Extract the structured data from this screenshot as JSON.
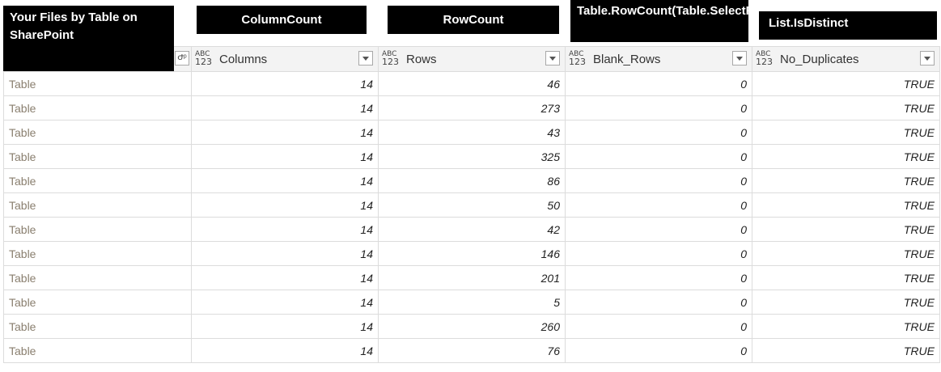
{
  "callouts": {
    "files_by_table": "Your Files by Table on SharePoint",
    "column_count": "ColumnCount",
    "row_count": "RowCount",
    "blank_rows_formula": "Table.RowCount(Table.SelectRows))",
    "is_distinct": "List.IsDistinct"
  },
  "columns": [
    {
      "type_top": "ABC",
      "type_bottom": "123",
      "label": "Columns"
    },
    {
      "type_top": "ABC",
      "type_bottom": "123",
      "label": "Rows"
    },
    {
      "type_top": "ABC",
      "type_bottom": "123",
      "label": "Blank_Rows"
    },
    {
      "type_top": "ABC",
      "type_bottom": "123",
      "label": "No_Duplicates"
    }
  ],
  "first_column_button": "Ժᵖ",
  "rows": [
    {
      "table": "Table",
      "columns": "14",
      "rows": "46",
      "blank": "0",
      "nodup": "TRUE"
    },
    {
      "table": "Table",
      "columns": "14",
      "rows": "273",
      "blank": "0",
      "nodup": "TRUE"
    },
    {
      "table": "Table",
      "columns": "14",
      "rows": "43",
      "blank": "0",
      "nodup": "TRUE"
    },
    {
      "table": "Table",
      "columns": "14",
      "rows": "325",
      "blank": "0",
      "nodup": "TRUE"
    },
    {
      "table": "Table",
      "columns": "14",
      "rows": "86",
      "blank": "0",
      "nodup": "TRUE"
    },
    {
      "table": "Table",
      "columns": "14",
      "rows": "50",
      "blank": "0",
      "nodup": "TRUE"
    },
    {
      "table": "Table",
      "columns": "14",
      "rows": "42",
      "blank": "0",
      "nodup": "TRUE"
    },
    {
      "table": "Table",
      "columns": "14",
      "rows": "146",
      "blank": "0",
      "nodup": "TRUE"
    },
    {
      "table": "Table",
      "columns": "14",
      "rows": "201",
      "blank": "0",
      "nodup": "TRUE"
    },
    {
      "table": "Table",
      "columns": "14",
      "rows": "5",
      "blank": "0",
      "nodup": "TRUE"
    },
    {
      "table": "Table",
      "columns": "14",
      "rows": "260",
      "blank": "0",
      "nodup": "TRUE"
    },
    {
      "table": "Table",
      "columns": "14",
      "rows": "76",
      "blank": "0",
      "nodup": "TRUE"
    }
  ]
}
